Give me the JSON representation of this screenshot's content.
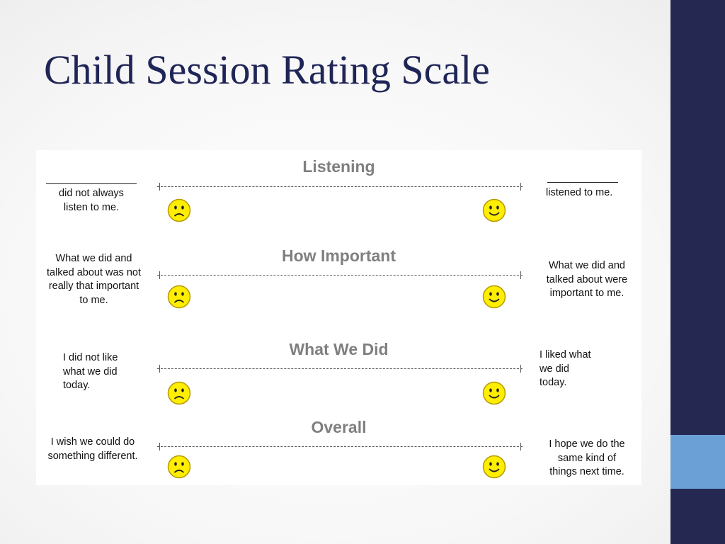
{
  "slide": {
    "title": "Child Session Rating Scale"
  },
  "scale": {
    "end_marker": "I",
    "items": [
      {
        "heading": "Listening",
        "left_text": "did not always\nlisten to me.",
        "right_text": "listened to me."
      },
      {
        "heading": "How Important",
        "left_text": "What we did and\ntalked about was not\nreally that important\nto me.",
        "right_text": "What we did and\ntalked about were\nimportant to me."
      },
      {
        "heading": "What We Did",
        "left_text": "I did not like\nwhat we did\ntoday.",
        "right_text": "I liked what\nwe did\ntoday."
      },
      {
        "heading": "Overall",
        "left_text": "I wish we could do\nsomething different.",
        "right_text": "I hope we do the\nsame kind of\nthings next time."
      }
    ]
  },
  "colors": {
    "title": "#1f2556",
    "sidebar": "#252952",
    "sidebar_accent": "#6aa0d6",
    "heading_gray": "#7f7f7f",
    "face_fill": "#ffee00",
    "face_stroke": "#b59a00"
  },
  "icons": {
    "sad": "sad-face-icon",
    "happy": "happy-face-icon"
  }
}
